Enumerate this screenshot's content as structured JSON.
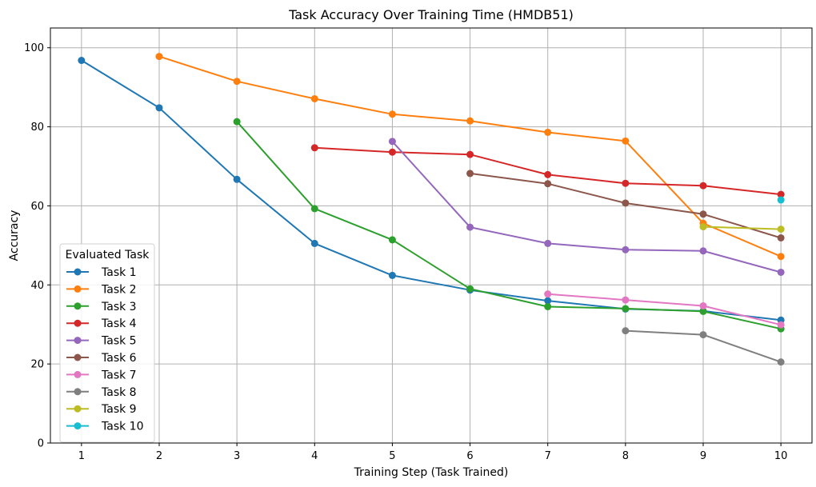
{
  "chart_data": {
    "type": "line",
    "title": "Task Accuracy Over Training Time (HMDB51)",
    "xlabel": "Training Step (Task Trained)",
    "ylabel": "Accuracy",
    "x_ticks": [
      1,
      2,
      3,
      4,
      5,
      6,
      7,
      8,
      9,
      10
    ],
    "y_ticks": [
      0,
      20,
      40,
      60,
      80,
      100
    ],
    "xlim": [
      0.6,
      10.4
    ],
    "ylim": [
      0,
      105
    ],
    "grid": true,
    "legend": {
      "title": "Evaluated Task",
      "placement": "lower-left"
    },
    "series": [
      {
        "name": "Task 1",
        "color": "#1f77b4",
        "x": [
          1,
          2,
          3,
          4,
          5,
          6,
          7,
          8,
          9,
          10
        ],
        "y": [
          96.8,
          84.8,
          66.7,
          50.5,
          42.4,
          38.7,
          36.0,
          33.9,
          33.4,
          31.1
        ]
      },
      {
        "name": "Task 2",
        "color": "#ff7f0e",
        "x": [
          2,
          3,
          4,
          5,
          6,
          7,
          8,
          9,
          10
        ],
        "y": [
          97.8,
          91.5,
          87.1,
          83.2,
          81.5,
          78.6,
          76.4,
          55.6,
          47.2
        ]
      },
      {
        "name": "Task 3",
        "color": "#2ca02c",
        "x": [
          3,
          4,
          5,
          6,
          7,
          8,
          9,
          10
        ],
        "y": [
          81.3,
          59.3,
          51.4,
          39.0,
          34.5,
          34.0,
          33.3,
          28.9
        ]
      },
      {
        "name": "Task 4",
        "color": "#d62728",
        "x": [
          4,
          5,
          6,
          7,
          8,
          9,
          10
        ],
        "y": [
          74.7,
          73.6,
          73.0,
          67.9,
          65.7,
          65.1,
          62.9
        ]
      },
      {
        "name": "Task 5",
        "color": "#9467bd",
        "x": [
          5,
          6,
          7,
          8,
          9,
          10
        ],
        "y": [
          76.3,
          54.6,
          50.5,
          48.9,
          48.6,
          43.2
        ]
      },
      {
        "name": "Task 6",
        "color": "#8c564b",
        "x": [
          6,
          7,
          8,
          9,
          10
        ],
        "y": [
          68.2,
          65.6,
          60.7,
          57.9,
          51.9
        ]
      },
      {
        "name": "Task 7",
        "color": "#e377c2",
        "x": [
          7,
          8,
          9,
          10
        ],
        "y": [
          37.7,
          36.2,
          34.7,
          29.9
        ]
      },
      {
        "name": "Task 8",
        "color": "#7f7f7f",
        "x": [
          8,
          9,
          10
        ],
        "y": [
          28.4,
          27.4,
          20.5
        ]
      },
      {
        "name": "Task 9",
        "color": "#bcbd22",
        "x": [
          9,
          10
        ],
        "y": [
          54.7,
          54.1
        ]
      },
      {
        "name": "Task 10",
        "color": "#17becf",
        "x": [
          10
        ],
        "y": [
          61.5
        ]
      }
    ]
  }
}
